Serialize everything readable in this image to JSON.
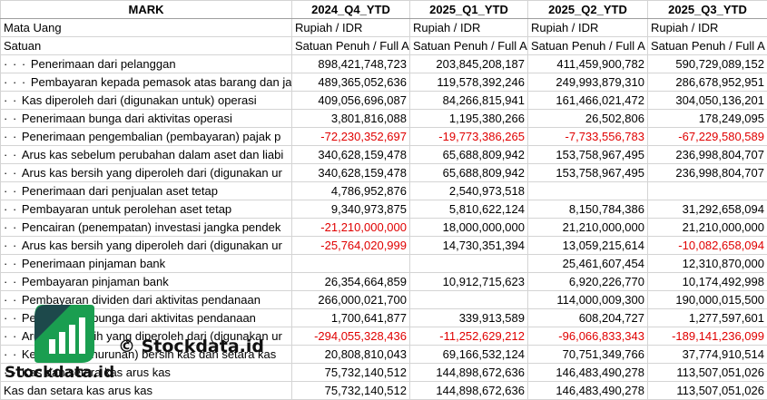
{
  "headers": [
    "MARK",
    "2024_Q4_YTD",
    "2025_Q1_YTD",
    "2025_Q2_YTD",
    "2025_Q3_YTD"
  ],
  "meta_rows": [
    {
      "label": "Mata Uang",
      "values": [
        "Rupiah / IDR",
        "Rupiah / IDR",
        "Rupiah / IDR",
        "Rupiah / IDR"
      ]
    },
    {
      "label": "Satuan",
      "values": [
        "Satuan Penuh / Full A",
        "Satuan Penuh / Full A",
        "Satuan Penuh / Full A",
        "Satuan Penuh / Full A"
      ]
    }
  ],
  "rows": [
    {
      "dots": "· · · ",
      "label": "Penerimaan dari pelanggan",
      "values": [
        "898,421,748,723",
        "203,845,208,187",
        "411,459,900,782",
        "590,729,089,152"
      ],
      "neg": [
        false,
        false,
        false,
        false
      ]
    },
    {
      "dots": "· · · ",
      "label": "Pembayaran kepada pemasok atas barang dan ja",
      "values": [
        "489,365,052,636",
        "119,578,392,246",
        "249,993,879,310",
        "286,678,952,951"
      ],
      "neg": [
        false,
        false,
        false,
        false
      ]
    },
    {
      "dots": "· · ",
      "label": "Kas diperoleh dari (digunakan untuk) operasi",
      "values": [
        "409,056,696,087",
        "84,266,815,941",
        "161,466,021,472",
        "304,050,136,201"
      ],
      "neg": [
        false,
        false,
        false,
        false
      ]
    },
    {
      "dots": "· · ",
      "label": "Penerimaan bunga dari aktivitas operasi",
      "values": [
        "3,801,816,088",
        "1,195,380,266",
        "26,502,806",
        "178,249,095"
      ],
      "neg": [
        false,
        false,
        false,
        false
      ]
    },
    {
      "dots": "· · ",
      "label": "Penerimaan pengembalian (pembayaran) pajak p",
      "values": [
        "-72,230,352,697",
        "-19,773,386,265",
        "-7,733,556,783",
        "-67,229,580,589"
      ],
      "neg": [
        true,
        true,
        true,
        true
      ]
    },
    {
      "dots": "· · ",
      "label": "Arus kas sebelum perubahan dalam aset dan liabi",
      "values": [
        "340,628,159,478",
        "65,688,809,942",
        "153,758,967,495",
        "236,998,804,707"
      ],
      "neg": [
        false,
        false,
        false,
        false
      ]
    },
    {
      "dots": "· · ",
      "label": "Arus kas bersih yang diperoleh dari (digunakan ur",
      "values": [
        "340,628,159,478",
        "65,688,809,942",
        "153,758,967,495",
        "236,998,804,707"
      ],
      "neg": [
        false,
        false,
        false,
        false
      ]
    },
    {
      "dots": "· · ",
      "label": "Penerimaan dari penjualan aset tetap",
      "values": [
        "4,786,952,876",
        "2,540,973,518",
        "",
        ""
      ],
      "neg": [
        false,
        false,
        false,
        false
      ]
    },
    {
      "dots": "· · ",
      "label": "Pembayaran untuk perolehan aset tetap",
      "values": [
        "9,340,973,875",
        "5,810,622,124",
        "8,150,784,386",
        "31,292,658,094"
      ],
      "neg": [
        false,
        false,
        false,
        false
      ]
    },
    {
      "dots": "· · ",
      "label": "Pencairan (penempatan) investasi jangka pendek",
      "values": [
        "-21,210,000,000",
        "18,000,000,000",
        "21,210,000,000",
        "21,210,000,000"
      ],
      "neg": [
        true,
        false,
        false,
        false
      ]
    },
    {
      "dots": "· · ",
      "label": "Arus kas bersih yang diperoleh dari (digunakan ur",
      "values": [
        "-25,764,020,999",
        "14,730,351,394",
        "13,059,215,614",
        "-10,082,658,094"
      ],
      "neg": [
        true,
        false,
        false,
        true
      ]
    },
    {
      "dots": "· · ",
      "label": "Penerimaan pinjaman bank",
      "values": [
        "",
        "",
        "25,461,607,454",
        "12,310,870,000"
      ],
      "neg": [
        false,
        false,
        false,
        false
      ]
    },
    {
      "dots": "· · ",
      "label": "Pembayaran pinjaman bank",
      "values": [
        "26,354,664,859",
        "10,912,715,623",
        "6,920,226,770",
        "10,174,492,998"
      ],
      "neg": [
        false,
        false,
        false,
        false
      ]
    },
    {
      "dots": "· · ",
      "label": "Pembayaran dividen dari aktivitas pendanaan",
      "values": [
        "266,000,021,700",
        "",
        "114,000,009,300",
        "190,000,015,500"
      ],
      "neg": [
        false,
        false,
        false,
        false
      ]
    },
    {
      "dots": "· · ",
      "label": "Pembayaran bunga dari aktivitas pendanaan",
      "values": [
        "1,700,641,877",
        "339,913,589",
        "608,204,727",
        "1,277,597,601"
      ],
      "neg": [
        false,
        false,
        false,
        false
      ]
    },
    {
      "dots": "· · ",
      "label": "Arus kas bersih yang diperoleh dari (digunakan ur",
      "values": [
        "-294,055,328,436",
        "-11,252,629,212",
        "-96,066,833,343",
        "-189,141,236,099"
      ],
      "neg": [
        true,
        true,
        true,
        true
      ]
    },
    {
      "dots": "· · ",
      "label": "Kenaikan (penurunan) bersih kas dan setara kas",
      "values": [
        "20,808,810,043",
        "69,166,532,124",
        "70,751,349,766",
        "37,774,910,514"
      ],
      "neg": [
        false,
        false,
        false,
        false
      ]
    },
    {
      "dots": "· · ",
      "label": "Kas dan setara kas arus kas",
      "values": [
        "75,732,140,512",
        "144,898,672,636",
        "146,483,490,278",
        "113,507,051,026"
      ],
      "neg": [
        false,
        false,
        false,
        false
      ]
    },
    {
      "dots": "",
      "label": "Kas dan setara kas arus kas",
      "values": [
        "75,732,140,512",
        "144,898,672,636",
        "146,483,490,278",
        "113,507,051,026"
      ],
      "neg": [
        false,
        false,
        false,
        false
      ]
    }
  ],
  "watermark": "© Stockdata.id",
  "logo_text": "Stockdata.id",
  "colors": {
    "negative": "#e00000",
    "logo_green": "#1a9e50",
    "logo_dark": "#1e3a4a"
  }
}
